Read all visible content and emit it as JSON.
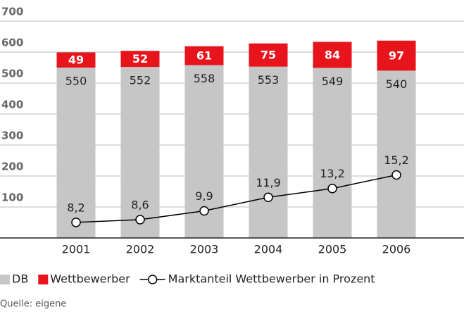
{
  "chart_data": {
    "type": "bar",
    "stacked": true,
    "categories": [
      "2001",
      "2002",
      "2003",
      "2004",
      "2005",
      "2006"
    ],
    "series": [
      {
        "name": "DB",
        "color": "#c6c6c6",
        "values": [
          550,
          552,
          558,
          553,
          549,
          540
        ]
      },
      {
        "name": "Wettbewerber",
        "color": "#e8141c",
        "values": [
          49,
          52,
          61,
          75,
          84,
          97
        ]
      },
      {
        "name": "Marktanteil Wettbewerber in Prozent",
        "type": "line",
        "axis": "y2",
        "color": "#000000",
        "values": [
          8.2,
          8.6,
          9.9,
          11.9,
          13.2,
          15.2
        ],
        "value_labels": [
          "8,2",
          "8,6",
          "9,9",
          "11,9",
          "13,2",
          "15,2"
        ]
      }
    ],
    "ylim": [
      0,
      700
    ],
    "yticks": [
      100,
      200,
      300,
      400,
      500,
      600,
      700
    ],
    "y2lim": [
      5.9,
      37.9
    ],
    "grid": true,
    "legend": "bottom",
    "source": "Quelle: eigene"
  }
}
